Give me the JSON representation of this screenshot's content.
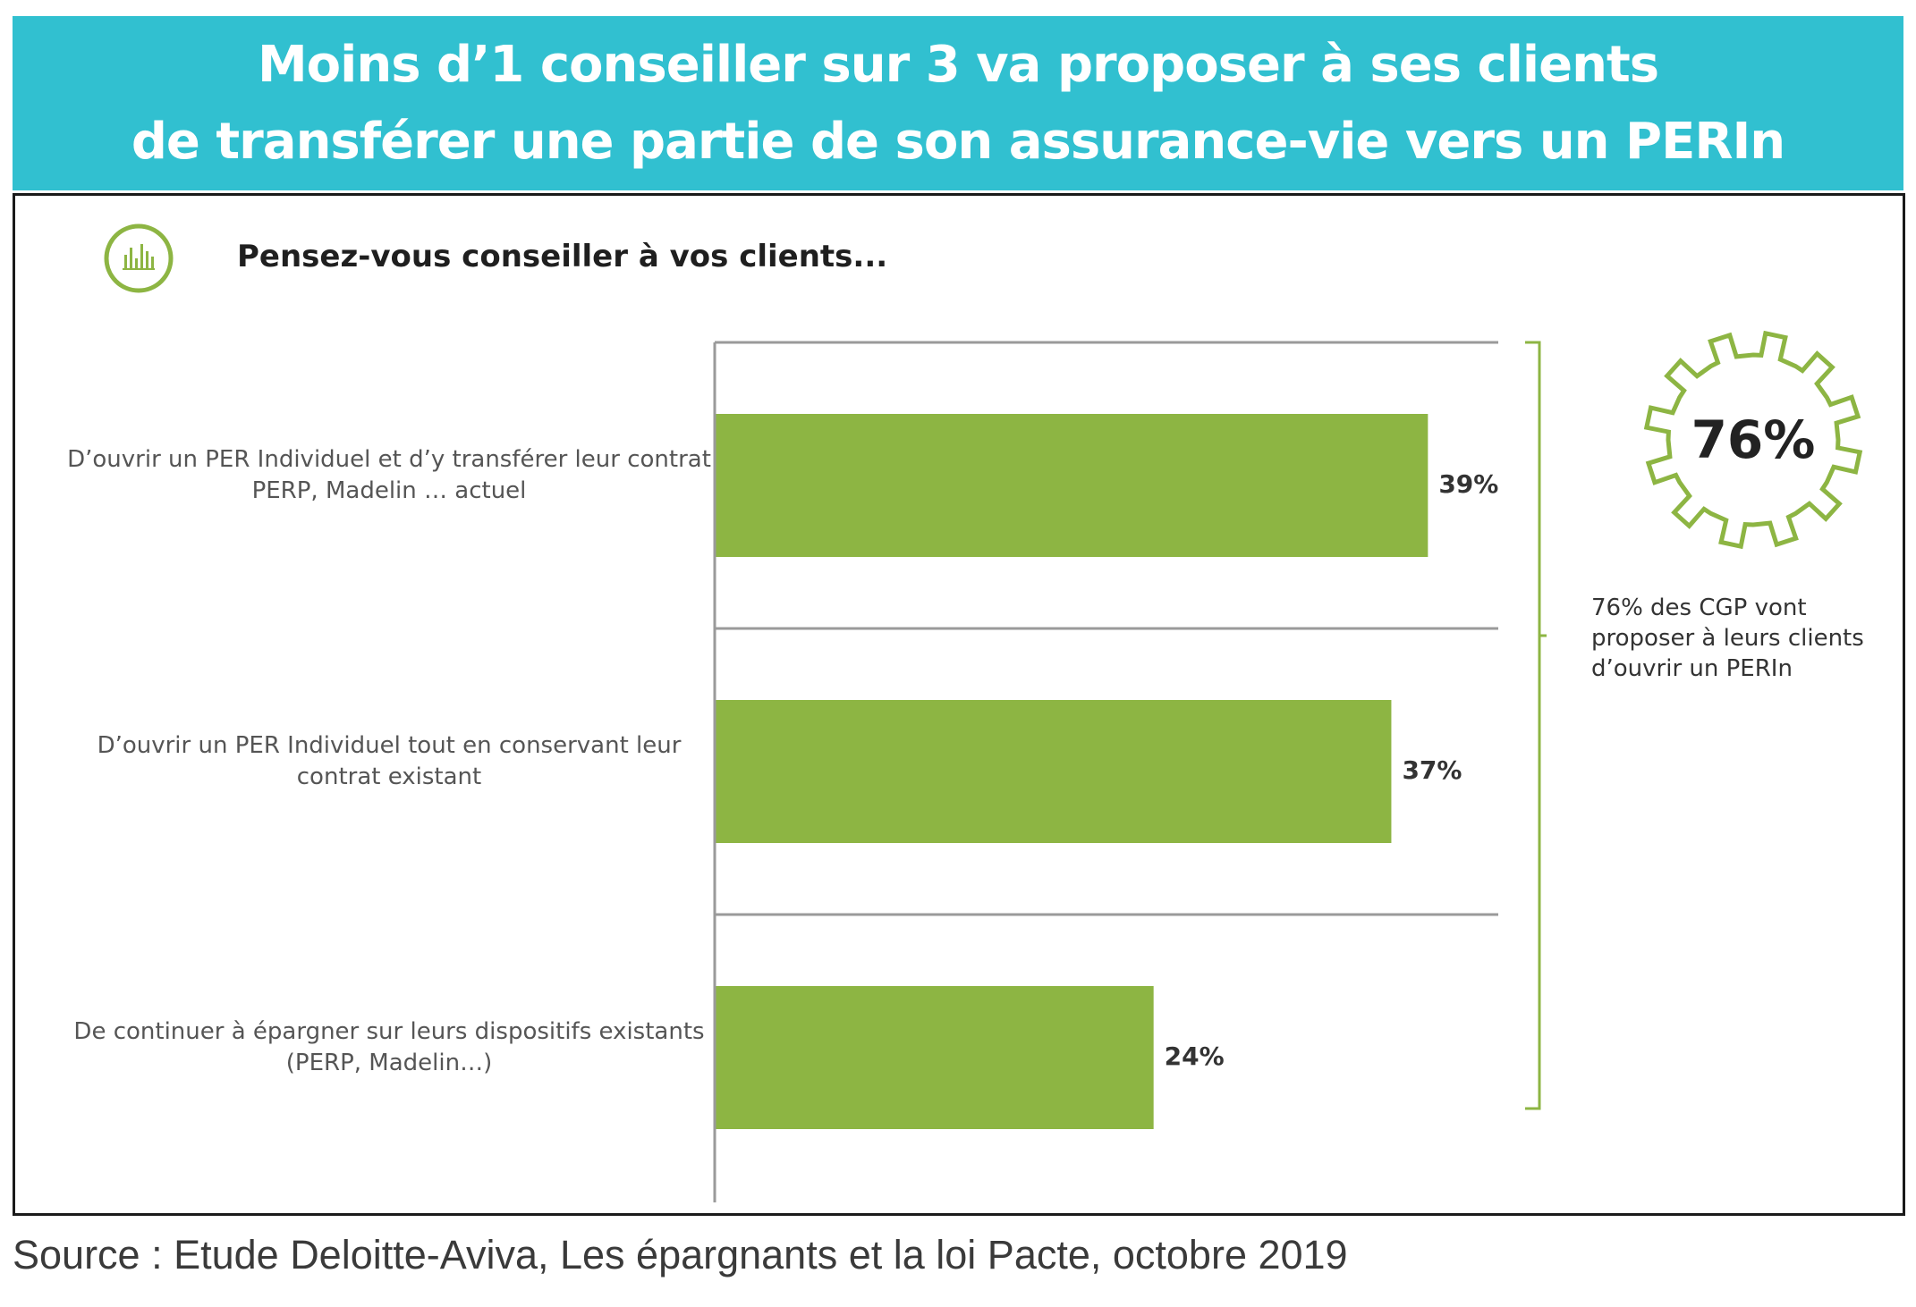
{
  "header": {
    "line1": "Moins d’1 conseiller sur 3 va proposer à ses clients",
    "line2": "de transférer une partie de son assurance-vie vers un PERIn"
  },
  "question": "Pensez-vous conseiller à vos clients...",
  "highlight": {
    "value": "76%",
    "note": "76% des CGP vont proposer à leurs clients d’ouvrir un PERIn"
  },
  "source": "Source : Etude Deloitte-Aviva, Les épargnants et la loi Pacte, octobre 2019",
  "colors": {
    "header": "#31c0d0",
    "bar": "#8db543",
    "accent": "#8db543"
  },
  "icons": {
    "question": "bar-chart-icon",
    "highlight": "gear-icon",
    "group": "bracket-icon"
  },
  "chart_data": {
    "type": "bar",
    "orientation": "horizontal",
    "categories": [
      "D’ouvrir un PER Individuel et d’y transférer leur contrat PERP, Madelin … actuel",
      "D’ouvrir un PER Individuel tout en conservant leur contrat existant",
      "De continuer à épargner sur leurs dispositifs existants (PERP, Madelin…)"
    ],
    "values": [
      39,
      37,
      24
    ],
    "value_labels": [
      "39%",
      "37%",
      "24%"
    ],
    "xlim": [
      0,
      45
    ],
    "grid": false,
    "legend": "none"
  }
}
